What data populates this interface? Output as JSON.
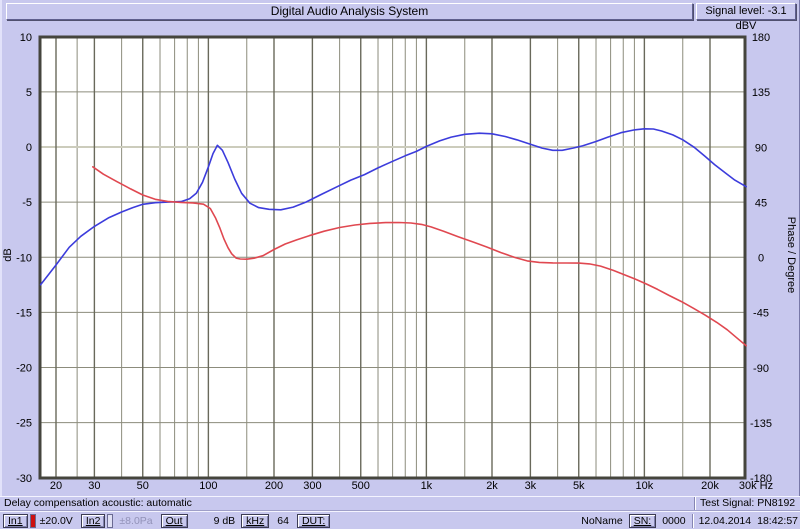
{
  "window": {
    "title": "Digital Audio Analysis System",
    "signal_level": "Signal level: -3.1 dBV"
  },
  "status_bar": {
    "left": "Delay compensation acoustic: automatic",
    "right": "Test Signal: PN8192"
  },
  "toolbar": {
    "in1_label": "In1",
    "in1_value": "±20.0V",
    "in2_label": "In2",
    "in2_value": "±8.0Pa",
    "out_label": "Out",
    "out_value": "9 dB",
    "khz_label": "kHz",
    "khz_value": "64",
    "dut_label": "DUT:",
    "name_value": "NoName",
    "sn_label": "SN:",
    "sn_value": "0000",
    "date": "12.04.2014",
    "time": "18:42:57"
  },
  "colors": {
    "window_background": "#c8c8ee",
    "amplitude_curve": "#3c3cdc",
    "phase_curve": "#e04850",
    "input_indicator_red": "#cc1111"
  },
  "chart_data": {
    "type": "line",
    "title": "",
    "x_axis": {
      "label": "Hz",
      "scale": "log",
      "min": 17,
      "max": 29500,
      "major_ticks": [
        20,
        30,
        50,
        100,
        200,
        300,
        500,
        1000,
        2000,
        3000,
        5000,
        10000,
        20000,
        30000
      ],
      "major_tick_labels": [
        "20",
        "30",
        "50",
        "100",
        "200",
        "300",
        "500",
        "1k",
        "2k",
        "3k",
        "5k",
        "10k",
        "20k",
        "30k Hz"
      ],
      "minor_ticks": [
        25,
        40,
        60,
        70,
        80,
        90,
        150,
        400,
        600,
        700,
        800,
        900,
        1500,
        4000,
        6000,
        7000,
        8000,
        9000,
        15000
      ]
    },
    "y_axis_left": {
      "label": "dB",
      "min": -30,
      "max": 10,
      "tick_step": 5,
      "ticks": [
        10,
        5,
        0,
        -5,
        -10,
        -15,
        -20,
        -25,
        -30
      ]
    },
    "y_axis_right": {
      "label": "Phase / Degree",
      "min": -180,
      "max": 180,
      "tick_step": 45,
      "ticks": [
        180,
        135,
        90,
        45,
        0,
        -45,
        -90,
        -135,
        -180
      ]
    },
    "grid": {
      "background": "#ffffff",
      "minor_color": "#8c8c7c",
      "major_color": "#69695b",
      "zero_line_color": "#ccccbc",
      "border_color": "#45453d"
    },
    "legend": "none",
    "series": [
      {
        "name": "amplitude",
        "unit": "dB",
        "axis": "left",
        "color": "#3c3cdc",
        "points": [
          [
            17,
            -12.5
          ],
          [
            20,
            -10.7
          ],
          [
            23,
            -9.1
          ],
          [
            26,
            -8.1
          ],
          [
            30,
            -7.2
          ],
          [
            35,
            -6.4
          ],
          [
            40,
            -5.9
          ],
          [
            45,
            -5.5
          ],
          [
            50,
            -5.2
          ],
          [
            57,
            -5.05
          ],
          [
            65,
            -5.0
          ],
          [
            75,
            -4.95
          ],
          [
            82,
            -4.7
          ],
          [
            88,
            -4.2
          ],
          [
            94,
            -3.2
          ],
          [
            100,
            -1.8
          ],
          [
            105,
            -0.6
          ],
          [
            110,
            0.15
          ],
          [
            116,
            -0.3
          ],
          [
            123,
            -1.4
          ],
          [
            132,
            -2.9
          ],
          [
            142,
            -4.2
          ],
          [
            155,
            -5.1
          ],
          [
            170,
            -5.5
          ],
          [
            190,
            -5.65
          ],
          [
            215,
            -5.7
          ],
          [
            245,
            -5.45
          ],
          [
            280,
            -5.0
          ],
          [
            330,
            -4.3
          ],
          [
            390,
            -3.6
          ],
          [
            450,
            -3.0
          ],
          [
            520,
            -2.5
          ],
          [
            600,
            -1.9
          ],
          [
            700,
            -1.3
          ],
          [
            800,
            -0.8
          ],
          [
            900,
            -0.4
          ],
          [
            1000,
            0.05
          ],
          [
            1150,
            0.55
          ],
          [
            1300,
            0.9
          ],
          [
            1500,
            1.15
          ],
          [
            1750,
            1.25
          ],
          [
            2000,
            1.2
          ],
          [
            2300,
            0.95
          ],
          [
            2600,
            0.65
          ],
          [
            3000,
            0.25
          ],
          [
            3400,
            -0.1
          ],
          [
            3800,
            -0.3
          ],
          [
            4200,
            -0.3
          ],
          [
            4700,
            -0.1
          ],
          [
            5200,
            0.1
          ],
          [
            6000,
            0.5
          ],
          [
            6800,
            0.9
          ],
          [
            7800,
            1.3
          ],
          [
            9000,
            1.55
          ],
          [
            10000,
            1.65
          ],
          [
            11000,
            1.63
          ],
          [
            12000,
            1.45
          ],
          [
            13500,
            1.1
          ],
          [
            15000,
            0.65
          ],
          [
            17000,
            -0.05
          ],
          [
            19000,
            -0.85
          ],
          [
            21000,
            -1.6
          ],
          [
            23500,
            -2.35
          ],
          [
            26000,
            -3.0
          ],
          [
            29300,
            -3.6
          ]
        ]
      },
      {
        "name": "phase",
        "unit": "degree",
        "axis": "right",
        "color": "#e04850",
        "points": [
          [
            29.5,
            74
          ],
          [
            33,
            68
          ],
          [
            38,
            62
          ],
          [
            44,
            56
          ],
          [
            50,
            51
          ],
          [
            57,
            47.5
          ],
          [
            65,
            45.8
          ],
          [
            75,
            45
          ],
          [
            85,
            44.6
          ],
          [
            95,
            43.5
          ],
          [
            102,
            40
          ],
          [
            108,
            32
          ],
          [
            113,
            24
          ],
          [
            118,
            15
          ],
          [
            123,
            8
          ],
          [
            128,
            3
          ],
          [
            134,
            -0.5
          ],
          [
            140,
            -1.2
          ],
          [
            150,
            -1.4
          ],
          [
            162,
            -0.6
          ],
          [
            178,
            1.5
          ],
          [
            200,
            6.5
          ],
          [
            225,
            11
          ],
          [
            255,
            14.5
          ],
          [
            290,
            17.8
          ],
          [
            340,
            21.5
          ],
          [
            400,
            24.5
          ],
          [
            470,
            26.5
          ],
          [
            550,
            27.8
          ],
          [
            650,
            28.5
          ],
          [
            750,
            28.6
          ],
          [
            850,
            28.2
          ],
          [
            950,
            27
          ],
          [
            1050,
            25
          ],
          [
            1200,
            21.5
          ],
          [
            1400,
            17
          ],
          [
            1650,
            12.5
          ],
          [
            1900,
            8.5
          ],
          [
            2200,
            4
          ],
          [
            2550,
            0
          ],
          [
            2900,
            -2.8
          ],
          [
            3300,
            -4.0
          ],
          [
            3800,
            -4.4
          ],
          [
            4400,
            -4.5
          ],
          [
            5000,
            -4.6
          ],
          [
            5600,
            -5.2
          ],
          [
            6300,
            -7.0
          ],
          [
            7200,
            -10.5
          ],
          [
            8200,
            -14.5
          ],
          [
            9200,
            -18
          ],
          [
            10300,
            -22
          ],
          [
            11500,
            -26
          ],
          [
            13000,
            -31
          ],
          [
            14800,
            -36
          ],
          [
            16800,
            -41.5
          ],
          [
            19000,
            -47
          ],
          [
            21500,
            -53
          ],
          [
            24000,
            -59
          ],
          [
            26500,
            -65.5
          ],
          [
            29300,
            -72
          ]
        ]
      }
    ]
  }
}
